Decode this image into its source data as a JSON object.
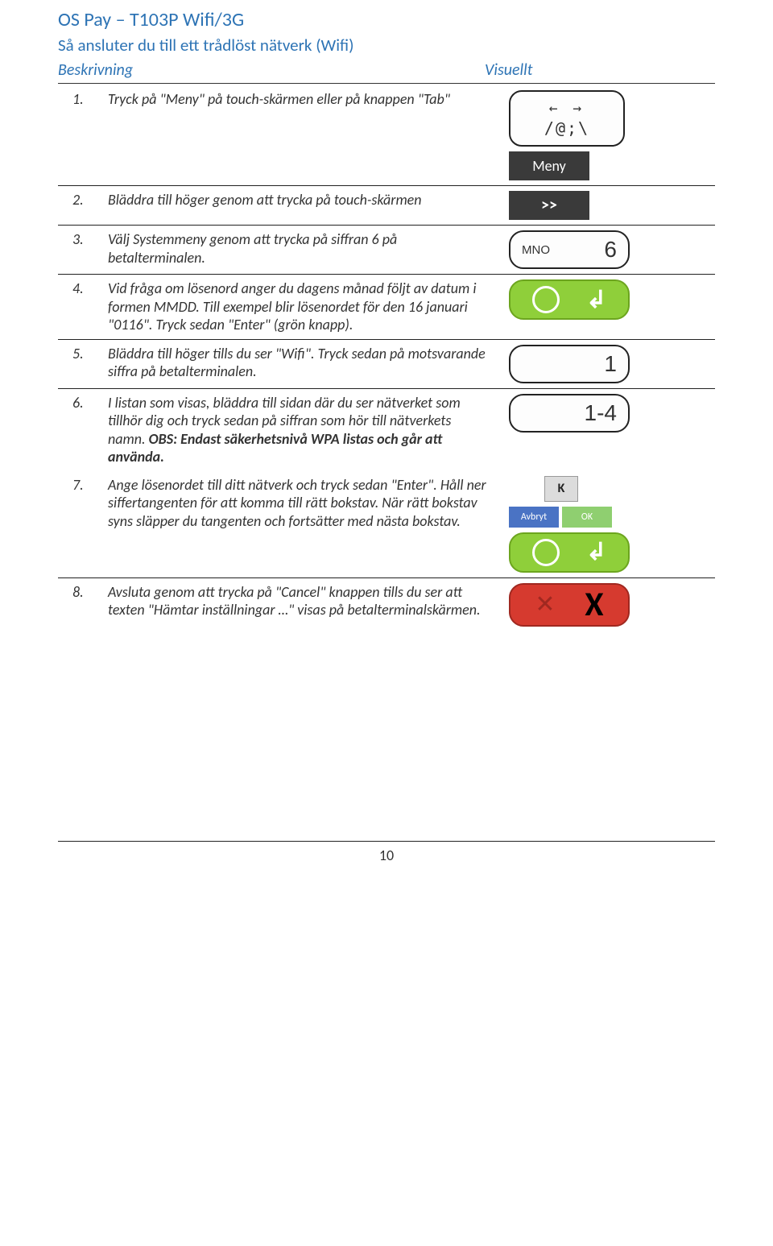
{
  "doc_title": "OS Pay – T103P Wifi/3G",
  "section_title": "Så ansluter du till ett trådlöst nätverk (Wifi)",
  "table_headers": {
    "left": "Beskrivning",
    "right": "Visuellt"
  },
  "steps": [
    {
      "num": "1.",
      "text": "Tryck på \"Meny\" på touch-skärmen eller på knappen \"Tab\""
    },
    {
      "num": "2.",
      "text": "Bläddra till höger genom att trycka på touch-skärmen"
    },
    {
      "num": "3.",
      "text": "Välj Systemmeny genom att trycka på siffran 6 på betalterminalen."
    },
    {
      "num": "4.",
      "text": "Vid fråga om lösenord anger du dagens månad följt av datum i formen MMDD. Till exempel blir lösenordet för den 16 januari \"0116\". Tryck sedan \"Enter\" (grön knapp)."
    },
    {
      "num": "5.",
      "text": "Bläddra till höger tills du ser \"Wifi\". Tryck sedan på motsvarande siffra på betalterminalen."
    },
    {
      "num": "6.",
      "text_pre": "I listan som visas, bläddra till sidan där du ser nätverket som tillhör dig och tryck sedan på siffran som hör till nätverkets namn. ",
      "text_bold": "OBS: Endast säkerhetsnivå WPA listas och går att använda."
    },
    {
      "num": "7.",
      "text": "Ange lösenordet till ditt nätverk och tryck sedan \"Enter\". Håll ner siffertangenten för att komma till rätt bokstav. När rätt bokstav syns släpper du tangenten och fortsätter med nästa bokstav."
    },
    {
      "num": "8.",
      "text": "Avsluta genom att trycka på \"Cancel\" knappen tills du ser att texten \"Hämtar inställningar …\" visas på betalterminalskärmen."
    }
  ],
  "visuals": {
    "tab_arrows_top": "←  →",
    "tab_symbols": "/@;\\",
    "meny_label": "Meny",
    "scroll_label": ">>",
    "key6_letters": "MNO",
    "key6_digit": "6",
    "key1_letters": "",
    "key1_digit": "1",
    "key14_letters": "",
    "key14_digit": "1-4",
    "kb_letter": "K",
    "kb_avbryt": "Avbryt",
    "kb_ok": "OK"
  },
  "colors": {
    "heading": "#2e74b5",
    "enter_green": "#8fcf3a",
    "enter_border": "#6ca51e",
    "cancel_red": "#d63a2f",
    "cancel_border": "#a02820",
    "cancel_x_fg": "#a02820",
    "dark_btn": "#3a3a3a",
    "kb_blue": "#4a73c4",
    "kb_green": "#8fcf70"
  },
  "page_number": "10"
}
